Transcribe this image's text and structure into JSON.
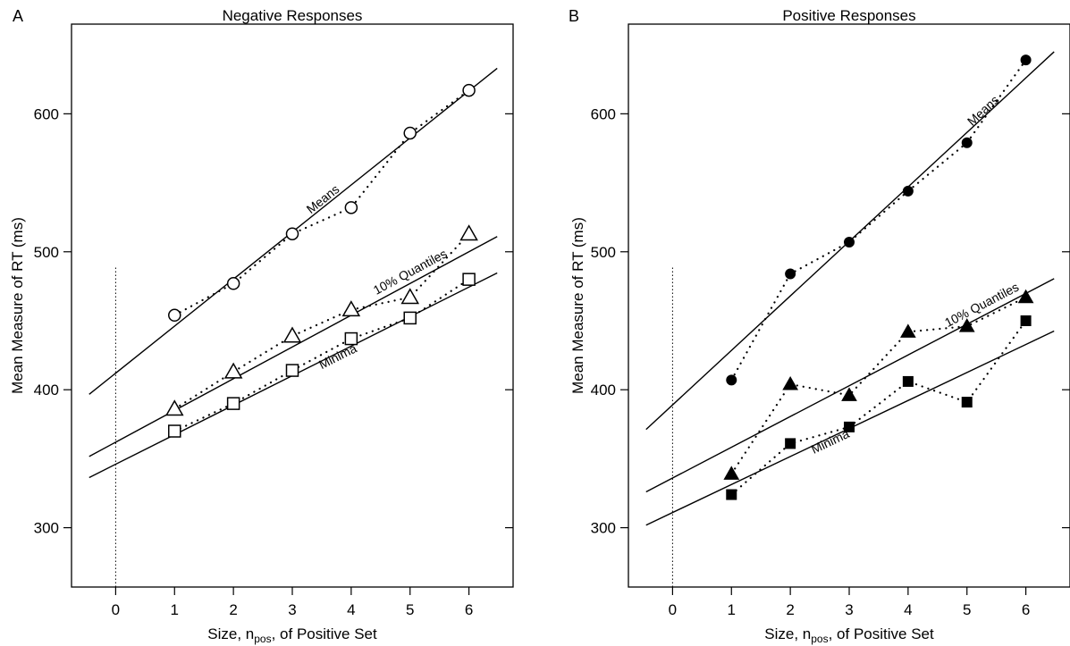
{
  "chart_data": [
    {
      "panel_letter": "A",
      "type": "scatter",
      "title": "Negative Responses",
      "xlabel": "Size, n",
      "xlabel_sub": "pos",
      "xlabel_suffix": ", of Positive Set",
      "ylabel": "Mean Measure of RT (ms)",
      "xlim": [
        -0.75,
        6.75
      ],
      "ylim": [
        257,
        665
      ],
      "x_ticks": [
        0,
        1,
        2,
        3,
        4,
        5,
        6
      ],
      "y_ticks": [
        300,
        400,
        500,
        600
      ],
      "reference_line_x": 0,
      "reference_line_y_max": 490,
      "marker_style": "open",
      "series": [
        {
          "name": "Means",
          "marker": "circle",
          "x": [
            1,
            2,
            3,
            4,
            5,
            6
          ],
          "y": [
            454,
            477,
            513,
            532,
            586,
            617
          ],
          "fit_intercept": 412,
          "fit_slope": 34.1,
          "label_at_x": 3.45
        },
        {
          "name": "10% Quantiles",
          "marker": "triangle",
          "x": [
            1,
            2,
            3,
            4,
            5,
            6
          ],
          "y": [
            386,
            413,
            439,
            458,
            467,
            513
          ],
          "fit_intercept": 362,
          "fit_slope": 23.0,
          "label_at_x": 4.95
        },
        {
          "name": "Minima",
          "marker": "square",
          "x": [
            1,
            2,
            3,
            4,
            5,
            6
          ],
          "y": [
            370,
            390,
            414,
            437,
            452,
            480
          ],
          "fit_intercept": 346,
          "fit_slope": 21.4,
          "label_at_x": 3.9
        }
      ]
    },
    {
      "panel_letter": "B",
      "type": "scatter",
      "title": "Positive Responses",
      "xlabel": "Size, n",
      "xlabel_sub": "pos",
      "xlabel_suffix": ", of Positive Set",
      "ylabel": "Mean Measure of RT (ms)",
      "xlim": [
        -0.75,
        6.75
      ],
      "ylim": [
        257,
        665
      ],
      "x_ticks": [
        0,
        1,
        2,
        3,
        4,
        5,
        6
      ],
      "y_ticks": [
        300,
        400,
        500,
        600
      ],
      "reference_line_x": 0,
      "reference_line_y_max": 490,
      "marker_style": "filled",
      "series": [
        {
          "name": "Means",
          "marker": "circle",
          "x": [
            1,
            2,
            3,
            4,
            5,
            6
          ],
          "y": [
            407,
            484,
            507,
            544,
            579,
            639
          ],
          "fit_intercept": 389,
          "fit_slope": 39.5,
          "label_at_x": 5.2
        },
        {
          "name": "10% Quantiles",
          "marker": "triangle",
          "x": [
            1,
            2,
            3,
            4,
            5,
            6
          ],
          "y": [
            339,
            404,
            396,
            442,
            446,
            467
          ],
          "fit_intercept": 336,
          "fit_slope": 22.3,
          "label_at_x": 5.2
        },
        {
          "name": "Minima",
          "marker": "square",
          "x": [
            1,
            2,
            3,
            4,
            5,
            6
          ],
          "y": [
            324,
            361,
            373,
            406,
            391,
            450
          ],
          "fit_intercept": 311,
          "fit_slope": 20.3,
          "label_at_x": 2.8
        }
      ]
    }
  ]
}
